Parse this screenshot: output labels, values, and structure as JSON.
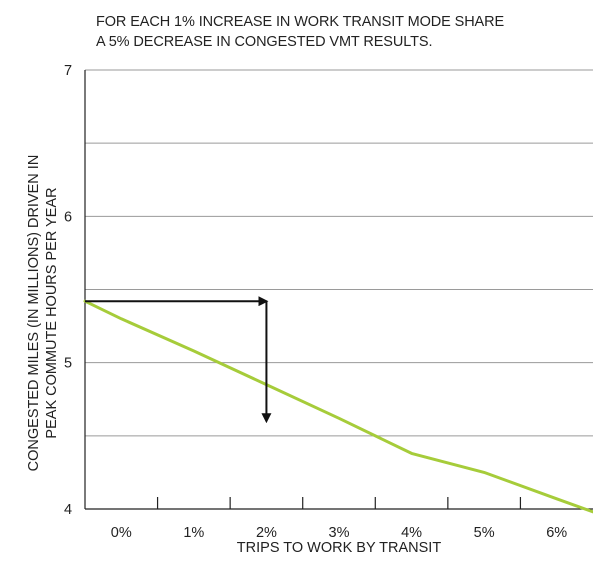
{
  "chart_data": {
    "type": "line",
    "subtitle_lines": [
      "FOR EACH 1% INCREASE IN WORK TRANSIT MODE SHARE",
      "A 5% DECREASE IN CONGESTED VMT RESULTS."
    ],
    "ylabel_lines": [
      "CONGESTED MILES (IN MILLIONS) DRIVEN IN",
      "PEAK COMMUTE HOURS PER YEAR"
    ],
    "xlabel": "TRIPS TO WORK BY TRANSIT",
    "categories": [
      "0%",
      "1%",
      "2%",
      "3%",
      "4%",
      "5%",
      "6%"
    ],
    "x": [
      -0.5,
      0,
      1,
      2,
      3,
      4,
      5,
      6,
      6.5
    ],
    "y": [
      5.42,
      5.3,
      5.08,
      4.85,
      4.62,
      4.38,
      4.25,
      4.07,
      3.98
    ],
    "yticks": [
      4,
      5,
      6,
      7
    ],
    "ylim": [
      4,
      7
    ],
    "xlim": [
      -0.5,
      6.5
    ],
    "grid": true,
    "line_color": "#a6cc3a",
    "arrow_color": "#111111",
    "annotation_arrows": [
      {
        "from": [
          -0.5,
          5.42
        ],
        "to": [
          2.0,
          5.42
        ]
      },
      {
        "from": [
          2.0,
          5.42
        ],
        "to": [
          2.0,
          4.6
        ]
      }
    ]
  }
}
